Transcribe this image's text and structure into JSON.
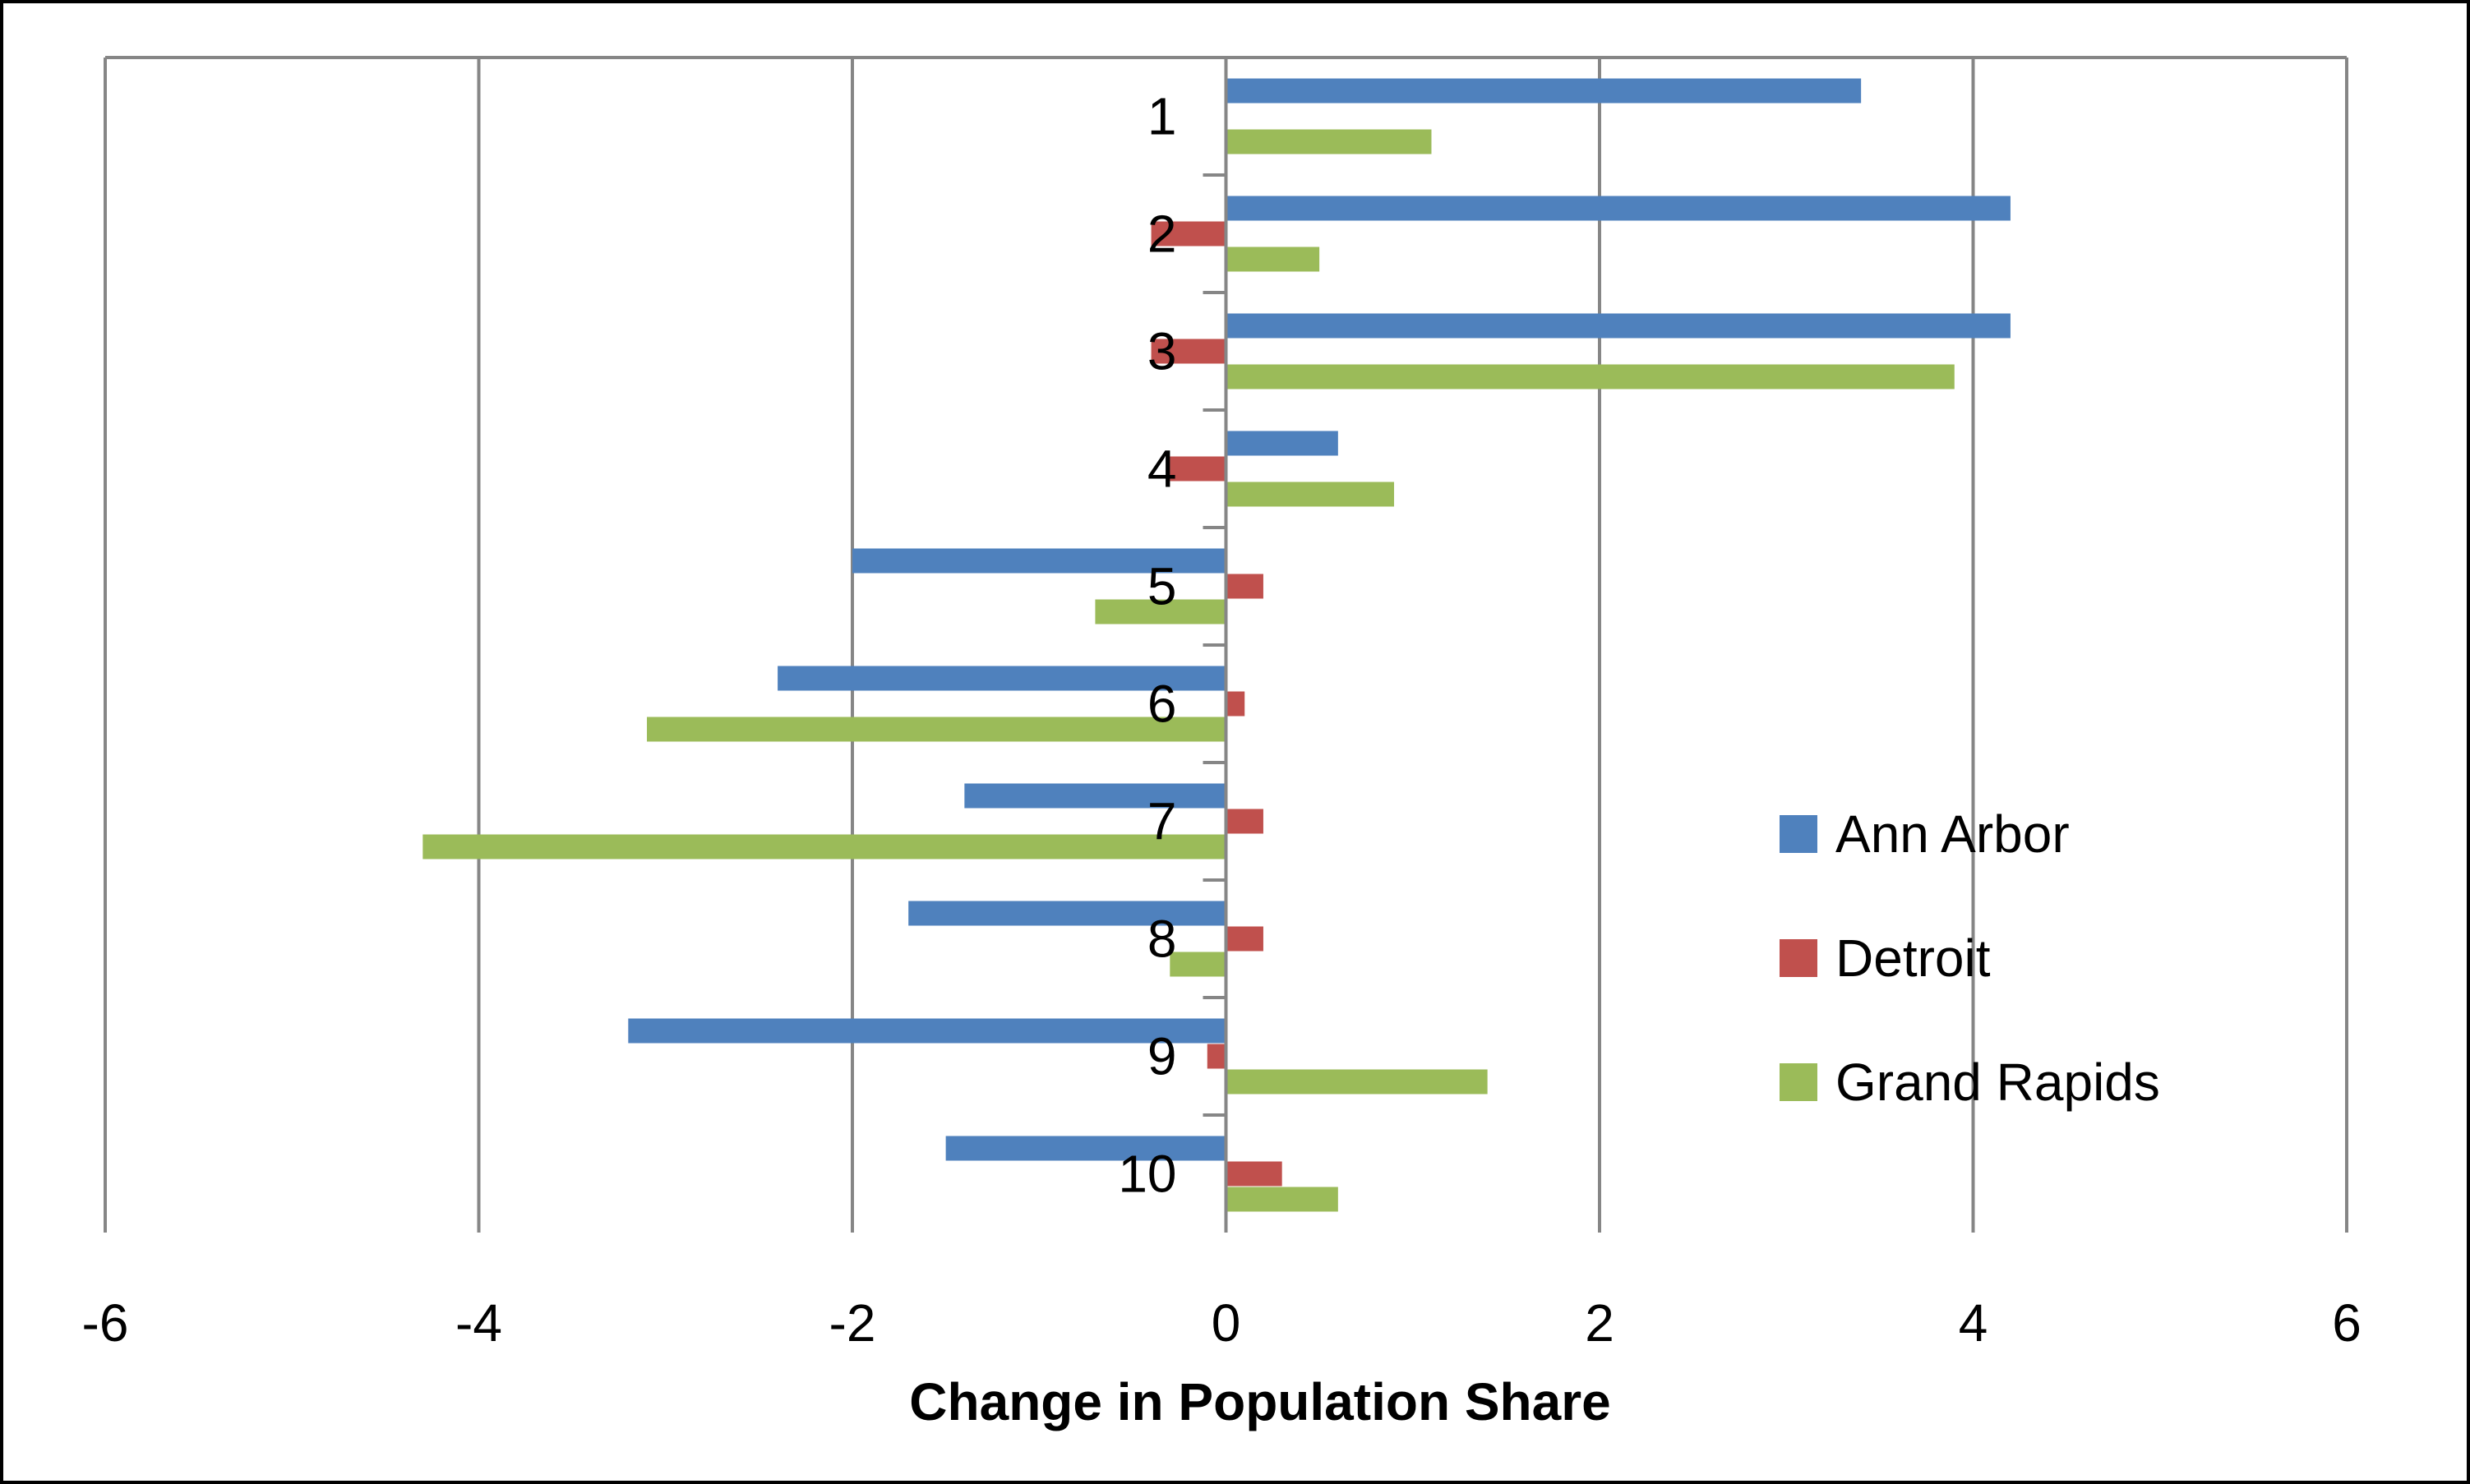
{
  "chart_data": {
    "type": "bar",
    "orientation": "horizontal",
    "categories": [
      "1",
      "2",
      "3",
      "4",
      "5",
      "6",
      "7",
      "8",
      "9",
      "10"
    ],
    "series": [
      {
        "name": "Ann Arbor",
        "color": "#4F81BD",
        "values": [
          3.4,
          4.2,
          4.2,
          0.6,
          -2.0,
          -2.4,
          -1.4,
          -1.7,
          -3.2,
          -1.5
        ]
      },
      {
        "name": "Detroit",
        "color": "#C0504D",
        "values": [
          0.0,
          -0.4,
          -0.4,
          -0.3,
          0.2,
          0.1,
          0.2,
          0.2,
          -0.1,
          0.3
        ]
      },
      {
        "name": "Grand Rapids",
        "color": "#9BBB59",
        "values": [
          1.1,
          0.5,
          3.9,
          0.9,
          -0.7,
          -3.1,
          -4.3,
          -0.3,
          1.4,
          0.6
        ]
      }
    ],
    "xlabel": "Change in Population Share",
    "ylabel": "",
    "xlim": [
      -6,
      6
    ],
    "xticks": [
      -6,
      -4,
      -2,
      0,
      2,
      4,
      6
    ],
    "xtick_labels": [
      "-6",
      "-4",
      "-2",
      "0",
      "2",
      "4",
      "6"
    ],
    "grid": true,
    "legend_position": "right"
  }
}
